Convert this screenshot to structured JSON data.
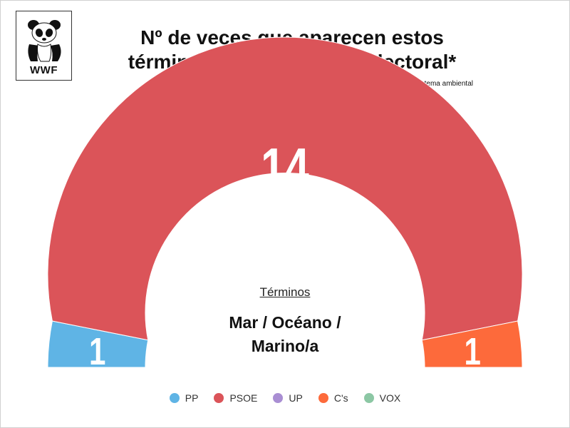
{
  "logo": {
    "text": "WWF",
    "icon": "panda-icon"
  },
  "title_line1": "Nº de veces que aparecen estos",
  "title_line2": "términos en el programa electoral*",
  "subtitle": "*Relacionado con tema ambiental",
  "center": {
    "caption": "Términos",
    "term_line1": "Mar / Océano /",
    "term_line2": "Marino/a"
  },
  "chart_data": {
    "type": "pie",
    "variant": "semicircle-donut",
    "categories": [
      "PP",
      "PSOE",
      "UP",
      "C's",
      "VOX"
    ],
    "values": [
      1,
      14,
      0,
      1,
      0
    ],
    "colors": [
      "#5fb4e5",
      "#db5459",
      "#a98ed3",
      "#fd6a3b",
      "#8cc7a4"
    ],
    "data_labels": [
      "1",
      "14",
      "",
      "1",
      ""
    ],
    "legend": {
      "placement": "bottom",
      "entries": [
        "PP",
        "PSOE",
        "UP",
        "C's",
        "VOX"
      ]
    }
  }
}
